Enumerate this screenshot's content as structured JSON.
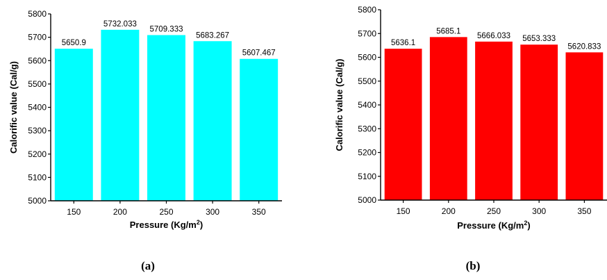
{
  "chart_data": [
    {
      "type": "bar",
      "panel_label": "(a)",
      "categories": [
        "150",
        "200",
        "250",
        "300",
        "350"
      ],
      "values": [
        5650.9,
        5732.033,
        5709.333,
        5683.267,
        5607.467
      ],
      "data_labels": [
        "5650.9",
        "5732.033",
        "5709.333",
        "5683.267",
        "5607.467"
      ],
      "xlabel": "Pressure (Kg/m",
      "xlabel_superscript": "2",
      "xlabel_suffix": ")",
      "ylabel": "Calorific value (Cal/g)",
      "ylim": [
        5000,
        5800
      ],
      "yticks": [
        "5000",
        "5100",
        "5200",
        "5300",
        "5400",
        "5500",
        "5600",
        "5700",
        "5800"
      ],
      "bar_color": "#00FFFF",
      "grid": false
    },
    {
      "type": "bar",
      "panel_label": "(b)",
      "categories": [
        "150",
        "200",
        "250",
        "300",
        "350"
      ],
      "values": [
        5636.1,
        5685.1,
        5666.033,
        5653.333,
        5620.833
      ],
      "data_labels": [
        "5636.1",
        "5685.1",
        "5666.033",
        "5653.333",
        "5620.833"
      ],
      "xlabel": "Pressure (Kg/m",
      "xlabel_superscript": "2",
      "xlabel_suffix": ")",
      "ylabel": "Calorific value (Cal/g)",
      "ylim": [
        5000,
        5800
      ],
      "yticks": [
        "5000",
        "5100",
        "5200",
        "5300",
        "5400",
        "5500",
        "5600",
        "5700",
        "5800"
      ],
      "bar_color": "#FF0000",
      "grid": false
    }
  ]
}
